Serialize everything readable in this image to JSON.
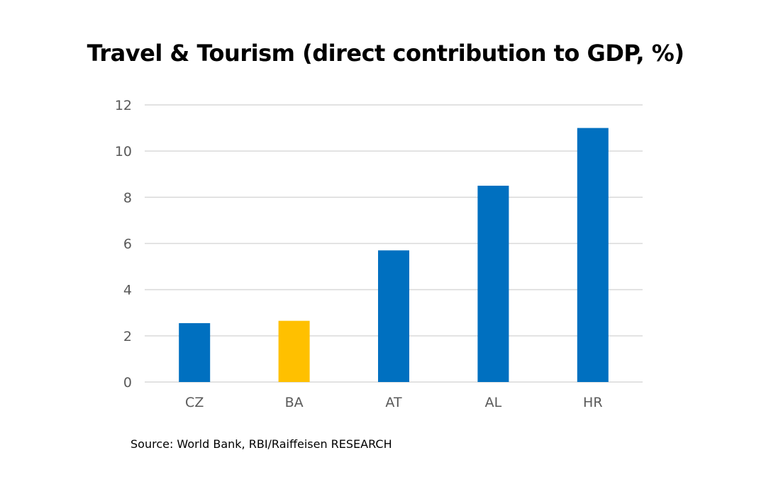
{
  "chart_data": {
    "type": "bar",
    "title": "Travel & Tourism (direct contribution to GDP, %)",
    "categories": [
      "CZ",
      "BA",
      "AT",
      "AL",
      "HR"
    ],
    "values": [
      2.55,
      2.65,
      5.7,
      8.5,
      11.0
    ],
    "bar_colors": [
      "#0070c0",
      "#ffc000",
      "#0070c0",
      "#0070c0",
      "#0070c0"
    ],
    "ylim": [
      0,
      12
    ],
    "yticks": [
      0,
      2,
      4,
      6,
      8,
      10,
      12
    ],
    "grid": true,
    "legend": "none",
    "xlabel": "",
    "ylabel": ""
  },
  "source": "Source: World Bank, RBI/Raiffeisen RESEARCH",
  "colors": {
    "bar_default": "#0070c0",
    "bar_highlight": "#ffc000",
    "gridline": "#d9d9d9",
    "tick_text": "#595959"
  }
}
